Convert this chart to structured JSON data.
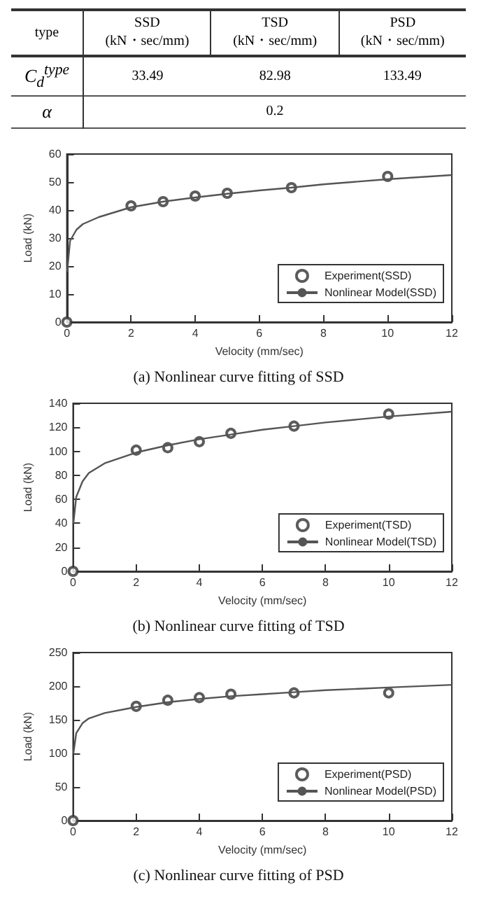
{
  "chart_data": [
    {
      "type": "other",
      "categories": [
        "type",
        "SSD\n(kN・sec/mm)",
        "TSD\n(kN・sec/mm)",
        "PSD\n(kN・sec/mm)"
      ],
      "y_categories": [
        "C$_{d}$$^{type}$",
        "α"
      ],
      "cell_labels": [
        [
          "33.49",
          "82.98",
          "133.49"
        ],
        [
          "0.2",
          null,
          null
        ]
      ]
    },
    {
      "type": "line",
      "title": "(a) Nonlinear curve fitting of SSD",
      "xlabel": "Velocity (mm/sec)",
      "ylabel": "Load (kN)",
      "xlim": [
        0,
        12
      ],
      "xticks": [
        0,
        2,
        4,
        6,
        8,
        10,
        12
      ],
      "ylim": [
        0,
        60
      ],
      "yticks": [
        0,
        10,
        20,
        30,
        40,
        50,
        60
      ],
      "grid": false,
      "legend": "bottom right",
      "series": [
        {
          "name": "Experiment(SSD)",
          "type": "scatter",
          "marker": "circle",
          "color": "#333333",
          "x": [
            0,
            2,
            3,
            4,
            5,
            7,
            10
          ],
          "values": [
            0,
            41.5,
            43,
            45,
            46,
            48,
            52
          ]
        },
        {
          "name": "Nonlinear Model(SSD)",
          "type": "line",
          "marker": "none",
          "color": "#555555",
          "x": [
            0.01,
            0.1,
            0.3,
            0.5,
            1,
            2,
            3,
            4,
            5,
            6,
            7,
            8,
            10,
            12
          ],
          "values": [
            18,
            29,
            33,
            35,
            37.5,
            41,
            43,
            44.5,
            45.8,
            47,
            48,
            49.2,
            51,
            52.5
          ]
        }
      ]
    },
    {
      "type": "line",
      "title": "(b) Nonlinear curve fitting of TSD",
      "xlabel": "Velocity (mm/sec)",
      "ylabel": "Load (kN)",
      "xlim": [
        0,
        12
      ],
      "xticks": [
        0,
        2,
        4,
        6,
        8,
        10,
        12
      ],
      "ylim": [
        0,
        140
      ],
      "yticks": [
        0,
        20,
        40,
        60,
        80,
        100,
        120,
        140
      ],
      "grid": false,
      "legend": "bottom right",
      "series": [
        {
          "name": "Experiment(TSD)",
          "type": "scatter",
          "marker": "circle",
          "color": "#333333",
          "x": [
            0,
            2,
            3,
            4,
            5,
            7,
            10
          ],
          "values": [
            0,
            101,
            103,
            108,
            115,
            121,
            131
          ]
        },
        {
          "name": "Nonlinear Model(TSD)",
          "type": "line",
          "marker": "none",
          "color": "#555555",
          "x": [
            0.01,
            0.1,
            0.3,
            0.5,
            1,
            2,
            3,
            4,
            5,
            6,
            7,
            8,
            10,
            12
          ],
          "values": [
            40,
            62,
            75,
            82,
            90,
            99,
            105,
            110,
            114,
            118,
            121,
            124,
            129,
            133
          ]
        }
      ]
    },
    {
      "type": "line",
      "title": "(c) Nonlinear curve fitting of PSD",
      "xlabel": "Velocity (mm/sec)",
      "ylabel": "Load (kN)",
      "xlim": [
        0,
        12
      ],
      "xticks": [
        0,
        2,
        4,
        6,
        8,
        10,
        12
      ],
      "ylim": [
        0,
        250
      ],
      "yticks": [
        0,
        50,
        100,
        150,
        200,
        250
      ],
      "grid": false,
      "legend": "bottom right",
      "series": [
        {
          "name": "Experiment(PSD)",
          "type": "scatter",
          "marker": "circle",
          "color": "#333333",
          "x": [
            0,
            2,
            3,
            4,
            5,
            7,
            10
          ],
          "values": [
            0,
            170,
            179,
            183,
            188,
            190,
            190
          ]
        },
        {
          "name": "Nonlinear Model(PSD)",
          "type": "line",
          "marker": "none",
          "color": "#555555",
          "x": [
            0.01,
            0.1,
            0.3,
            0.5,
            1,
            2,
            3,
            4,
            5,
            6,
            7,
            8,
            10,
            12
          ],
          "values": [
            100,
            130,
            145,
            152,
            160,
            169,
            176,
            181,
            185,
            188,
            191,
            194,
            198,
            202
          ]
        }
      ]
    }
  ]
}
